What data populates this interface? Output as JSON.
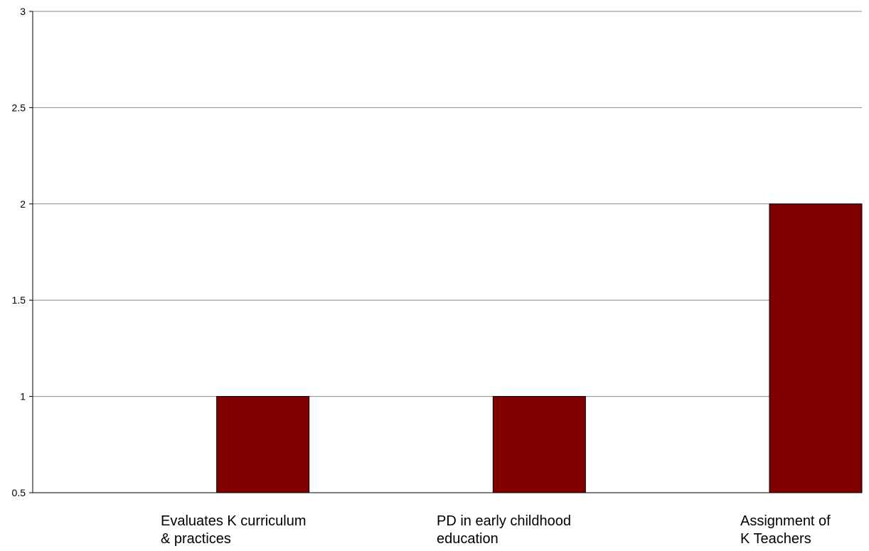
{
  "chart_data": {
    "type": "bar",
    "title": "",
    "xlabel": "",
    "ylabel": "",
    "categories": [
      [
        "Evaluates K curriculum",
        "& practices"
      ],
      [
        "PD in early childhood",
        "education"
      ],
      [
        "Assignment of",
        "K Teachers"
      ]
    ],
    "values": [
      1,
      1,
      2
    ],
    "ylim": [
      0.5,
      3
    ],
    "yticks": [
      "0.5",
      "1",
      "1.5",
      "2",
      "2.5",
      "3"
    ],
    "grid": true,
    "legend": "none",
    "bar_color": "#800000",
    "bar_edge_color": "#000000",
    "grid_color": "#8c8c8c"
  }
}
